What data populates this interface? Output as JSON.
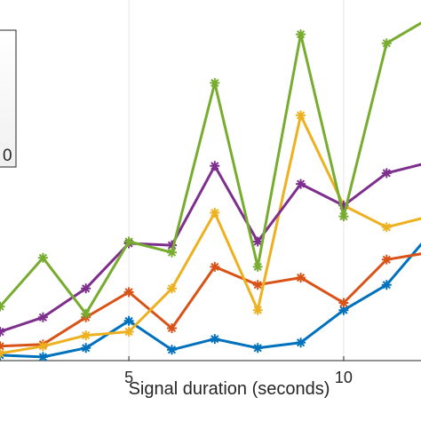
{
  "chart_data": {
    "type": "line",
    "xlabel": "Signal duration (seconds)",
    "ylabel": "",
    "xlim": [
      2,
      11.8
    ],
    "ylim": [
      0,
      100
    ],
    "x_ticks": [
      5,
      10
    ],
    "x_tick_labels": [
      "5",
      "10"
    ],
    "grid": true,
    "legend_position": "top-left",
    "legend_visible_text": "0",
    "x": [
      2,
      3,
      4,
      5,
      6,
      7,
      8,
      9,
      10,
      11,
      12
    ],
    "series": [
      {
        "color": "#0072BD",
        "values": [
          1.5,
          1.0,
          3.5,
          11.0,
          3.0,
          6.0,
          3.5,
          5.0,
          14.0,
          21.0,
          35.0
        ]
      },
      {
        "color": "#D95319",
        "values": [
          4.0,
          4.5,
          12.0,
          19.0,
          9.0,
          26.0,
          21.0,
          23.0,
          16.0,
          28.0,
          30.0
        ]
      },
      {
        "color": "#EDB120",
        "values": [
          2.0,
          4.0,
          7.0,
          8.0,
          20.0,
          41.0,
          14.0,
          68.0,
          43.0,
          37.0,
          40.0
        ]
      },
      {
        "color": "#7E2F8E",
        "values": [
          8.0,
          12.0,
          20.0,
          32.5,
          32.0,
          54.0,
          33.0,
          49.0,
          43.0,
          52.0,
          55.0
        ]
      },
      {
        "color": "#77AC30",
        "values": [
          15.0,
          28.5,
          13.0,
          33.0,
          30.0,
          77.0,
          26.0,
          90.5,
          40.0,
          88.0,
          95.0
        ]
      }
    ]
  }
}
